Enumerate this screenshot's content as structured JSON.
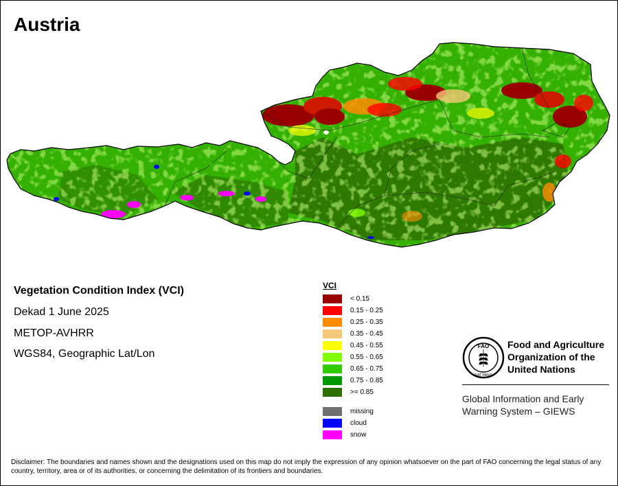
{
  "title": "Austria",
  "info": {
    "index_name": "Vegetation Condition Index (VCI)",
    "period": "Dekad 1 June 2025",
    "sensor": "METOP-AVHRR",
    "projection": "WGS84, Geographic Lat/Lon"
  },
  "legend": {
    "title": "VCI",
    "classes": [
      {
        "label": "< 0.15",
        "color": "#990000"
      },
      {
        "label": "0.15 - 0.25",
        "color": "#ff0000"
      },
      {
        "label": "0.25 - 0.35",
        "color": "#ff8c00"
      },
      {
        "label": "0.35 - 0.45",
        "color": "#f5c878"
      },
      {
        "label": "0.45 - 0.55",
        "color": "#ffff00"
      },
      {
        "label": "0.55 - 0.65",
        "color": "#80ff00"
      },
      {
        "label": "0.65 - 0.75",
        "color": "#33cc00"
      },
      {
        "label": "0.75 - 0.85",
        "color": "#009900"
      },
      {
        "label": ">= 0.85",
        "color": "#2e7000"
      }
    ],
    "special": [
      {
        "label": "missing",
        "color": "#707070"
      },
      {
        "label": "cloud",
        "color": "#0000ff"
      },
      {
        "label": "snow",
        "color": "#ff00ff"
      }
    ]
  },
  "org": {
    "name": "Food and Agriculture Organization of the United Nations",
    "logo_letters": "FAO",
    "logo_motto": "FIAT PANIS",
    "system": "Global Information and Early Warning System – GIEWS"
  },
  "disclaimer": "Disclaimer: The boundaries and names shown and the designations used on this map do not imply the expression of any opinion whatsoever on the part of FAO concerning the legal status of any country, territory, area or of its authorities, or concerning the delimitation of its frontiers and boundaries."
}
